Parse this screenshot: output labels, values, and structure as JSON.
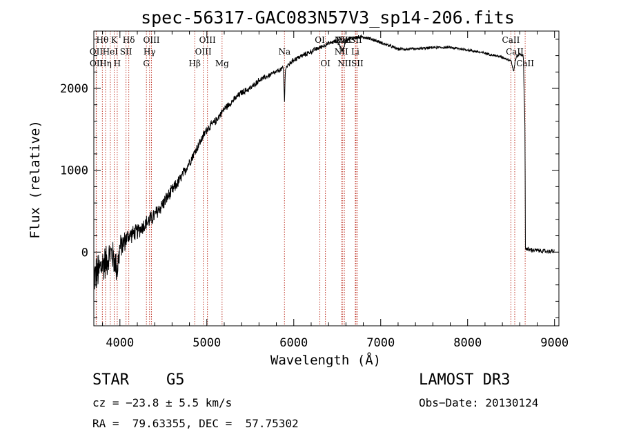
{
  "chart_data": {
    "type": "line",
    "title": "spec-56317-GAC083N57V3_sp14-206.fits",
    "xlabel": "Wavelength (Å)",
    "ylabel": "Flux (relative)",
    "xlim": [
      3700,
      9050
    ],
    "ylim": [
      -900,
      2700
    ],
    "xticks": [
      4000,
      5000,
      6000,
      7000,
      8000,
      9000
    ],
    "yticks": [
      0,
      1000,
      2000
    ],
    "xtick_labels": [
      "4000",
      "5000",
      "6000",
      "7000",
      "8000",
      "9000"
    ],
    "ytick_labels": [
      "0",
      "1000",
      "2000"
    ],
    "spectrum_anchors": {
      "x": [
        3700,
        3750,
        3800,
        3850,
        3900,
        3970,
        4000,
        4100,
        4200,
        4300,
        4400,
        4500,
        4600,
        4700,
        4800,
        4900,
        5000,
        5100,
        5200,
        5300,
        5400,
        5500,
        5600,
        5700,
        5800,
        5880,
        5893,
        5905,
        6000,
        6100,
        6200,
        6300,
        6400,
        6500,
        6563,
        6600,
        6700,
        6800,
        6900,
        7000,
        7200,
        7400,
        7600,
        7800,
        8000,
        8200,
        8400,
        8500,
        8530,
        8545,
        8560,
        8600,
        8640,
        8660,
        8665,
        8700,
        8800,
        8900,
        9000
      ],
      "y": [
        -300,
        -250,
        -150,
        -100,
        0,
        -200,
        50,
        200,
        250,
        350,
        450,
        600,
        750,
        900,
        1100,
        1300,
        1500,
        1600,
        1750,
        1850,
        1950,
        2000,
        2100,
        2150,
        2200,
        2250,
        1850,
        2250,
        2350,
        2400,
        2450,
        2500,
        2550,
        2580,
        2450,
        2600,
        2620,
        2630,
        2600,
        2560,
        2480,
        2480,
        2500,
        2500,
        2470,
        2430,
        2380,
        2340,
        2200,
        2330,
        2380,
        2420,
        2400,
        1500,
        50,
        30,
        20,
        10,
        10
      ],
      "noise": [
        260,
        280,
        260,
        230,
        210,
        230,
        180,
        120,
        110,
        110,
        110,
        100,
        90,
        80,
        70,
        65,
        60,
        55,
        50,
        45,
        45,
        40,
        40,
        35,
        35,
        35,
        35,
        35,
        35,
        35,
        35,
        30,
        30,
        30,
        30,
        28,
        28,
        25,
        25,
        22,
        20,
        18,
        18,
        18,
        18,
        18,
        18,
        18,
        18,
        18,
        18,
        18,
        18,
        18,
        30,
        35,
        30,
        28,
        28
      ]
    },
    "spectral_lines": [
      {
        "label": "Hθ",
        "wavelength": 3798,
        "row": 0
      },
      {
        "label": "OII",
        "wavelength": 3727,
        "row": 1
      },
      {
        "label": "OII",
        "wavelength": 3729,
        "row": 2
      },
      {
        "label": "Hη",
        "wavelength": 3835,
        "row": 2
      },
      {
        "label": "K",
        "wavelength": 3934,
        "row": 0
      },
      {
        "label": "HeI",
        "wavelength": 3889,
        "row": 1
      },
      {
        "label": "SII",
        "wavelength": 4070,
        "row": 1
      },
      {
        "label": "H",
        "wavelength": 3969,
        "row": 2
      },
      {
        "label": "Hδ",
        "wavelength": 4102,
        "row": 0
      },
      {
        "label": "OIII",
        "wavelength": 4363,
        "row": 0
      },
      {
        "label": "Hγ",
        "wavelength": 4341,
        "row": 1
      },
      {
        "label": "G",
        "wavelength": 4305,
        "row": 2
      },
      {
        "label": "Hβ",
        "wavelength": 4861,
        "row": 2
      },
      {
        "label": "OIII",
        "wavelength": 5007,
        "row": 0
      },
      {
        "label": "OIII",
        "wavelength": 4959,
        "row": 1
      },
      {
        "label": "Mg",
        "wavelength": 5175,
        "row": 2
      },
      {
        "label": "Na",
        "wavelength": 5893,
        "row": 1
      },
      {
        "label": "OI",
        "wavelength": 6300,
        "row": 0
      },
      {
        "label": "OI",
        "wavelength": 6364,
        "row": 2
      },
      {
        "label": "NII",
        "wavelength": 6548,
        "row": 0
      },
      {
        "label": "Hα",
        "wavelength": 6563,
        "row": 0
      },
      {
        "label": "NII",
        "wavelength": 6583,
        "row": 0
      },
      {
        "label": "SII",
        "wavelength": 6716,
        "row": 0
      },
      {
        "label": "NII",
        "wavelength": 6548,
        "row": 1
      },
      {
        "label": "Li",
        "wavelength": 6708,
        "row": 1
      },
      {
        "label": "NII",
        "wavelength": 6583,
        "row": 2
      },
      {
        "label": "SII",
        "wavelength": 6731,
        "row": 2
      },
      {
        "label": "CaII",
        "wavelength": 8498,
        "row": 0
      },
      {
        "label": "CaII",
        "wavelength": 8542,
        "row": 1
      },
      {
        "label": "CaII",
        "wavelength": 8662,
        "row": 2
      }
    ]
  },
  "info": {
    "object_class": "STAR",
    "subclass": "G5",
    "survey": "LAMOST DR3",
    "redshift": "cz = −23.8 ± 5.5 km/s",
    "obs_date": "Obs−Date: 20130124",
    "coords": "RA =  79.63355, DEC =  57.75302"
  }
}
